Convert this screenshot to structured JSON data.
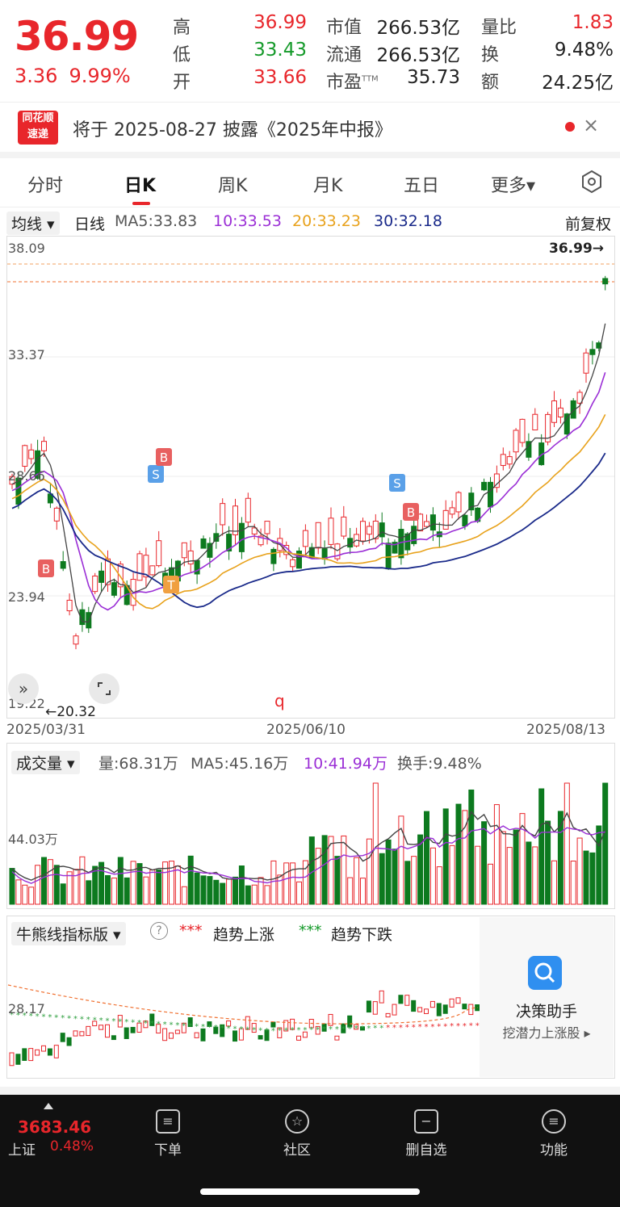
{
  "quote": {
    "price": "36.99",
    "change": "3.36",
    "change_pct": "9.99%",
    "high_label": "高",
    "high": "36.99",
    "low_label": "低",
    "low": "33.43",
    "open_label": "开",
    "open": "33.66",
    "mktcap_label": "市值",
    "mktcap": "266.53亿",
    "float_label": "流通",
    "float": "266.53亿",
    "pe_label": "市盈",
    "pe_sup": "TTM",
    "pe": "35.73",
    "vratio_label": "量比",
    "vratio": "1.83",
    "turnover_label": "换",
    "turnover": "9.48%",
    "amount_label": "额",
    "amount": "24.25亿"
  },
  "notice": {
    "logo_line1": "同花顺",
    "logo_line2": "速递",
    "text": "将于 2025-08-27 披露《2025年中报》",
    "close": "×"
  },
  "tabs": [
    "分时",
    "日K",
    "周K",
    "月K",
    "五日",
    "更多▾"
  ],
  "ma_row": {
    "select": "均线 ▾",
    "period": "日线",
    "ma5": "MA5:33.83",
    "ma10": "10:33.53",
    "ma20": "20:33.23",
    "ma30": "30:32.18",
    "adjust": "前复权"
  },
  "kline": {
    "y_labels": [
      "38.09",
      "33.37",
      "28.66",
      "23.94",
      "19.22"
    ],
    "last_price_tag": "36.99→",
    "low_tag": "←20.32",
    "marker_q": "q",
    "dates": [
      "2025/03/31",
      "2025/06/10",
      "2025/08/13"
    ],
    "signals": [
      "B",
      "S",
      "B",
      "T",
      "S",
      "B"
    ]
  },
  "volume": {
    "select": "成交量 ▾",
    "vol": "量:68.31万",
    "ma5": "MA5:45.16万",
    "ma10": "10:41.94万",
    "turnover": "换手:9.48%",
    "y_label": "44.03万"
  },
  "indicator": {
    "select": "牛熊线指标版 ▾",
    "help": "?",
    "up_label": "趋势上涨",
    "down_label": "趋势下跌",
    "y_label": "28.17"
  },
  "assistant": {
    "title": "决策助手",
    "sub": "挖潜力上涨股 ▸"
  },
  "nav": {
    "index_value": "3683.46",
    "index_name": "上证",
    "index_pct": "0.48%",
    "items": [
      "下单",
      "社区",
      "删自选",
      "功能"
    ]
  }
}
